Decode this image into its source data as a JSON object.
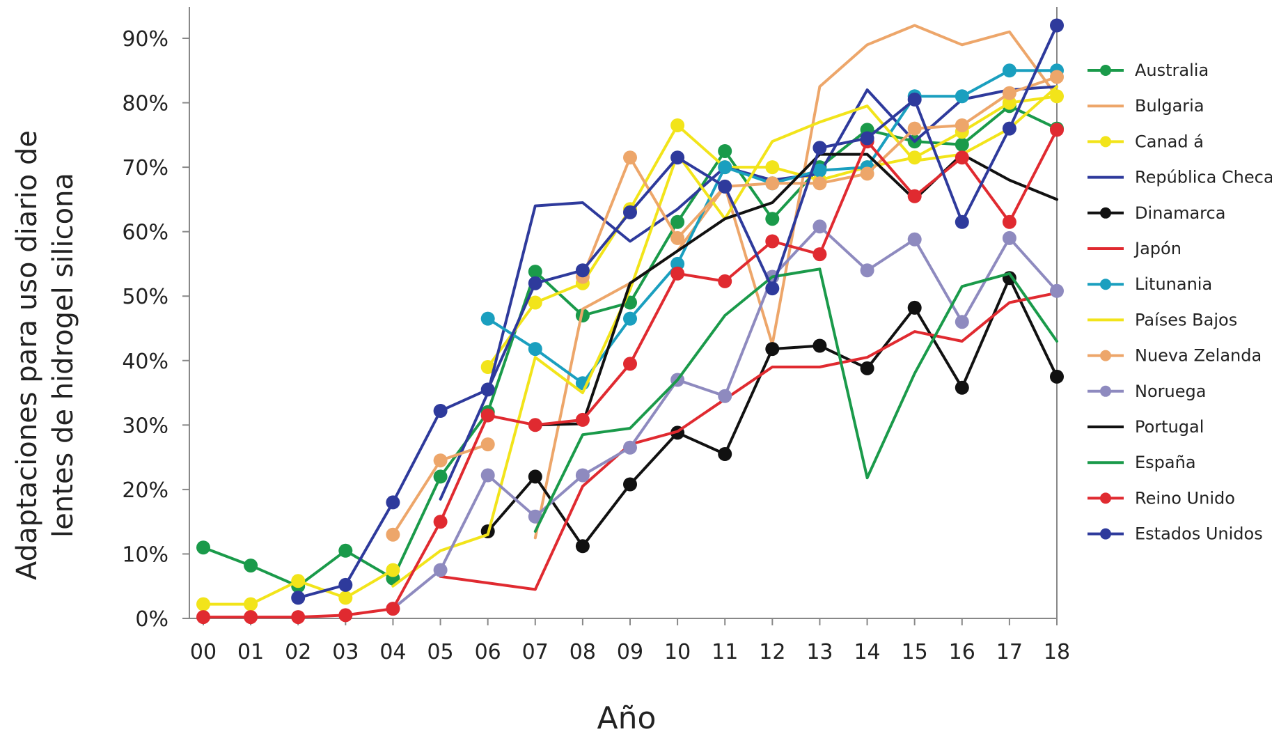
{
  "chart_data": {
    "type": "line",
    "xlabel": "Año",
    "ylabel_line1": "Adaptaciones para uso diario de",
    "ylabel_line2": "lentes de hidrogel silicona",
    "x": [
      "00",
      "01",
      "02",
      "03",
      "04",
      "05",
      "06",
      "07",
      "08",
      "09",
      "10",
      "11",
      "12",
      "13",
      "14",
      "15",
      "16",
      "17",
      "18"
    ],
    "yticks": [
      "0%",
      "10%",
      "20%",
      "30%",
      "40%",
      "50%",
      "60%",
      "70%",
      "80%",
      "90%"
    ],
    "ylim": [
      0,
      90
    ],
    "grid": false,
    "legend_position": "right",
    "series": [
      {
        "name": "Australia",
        "color": "#1a9a4a",
        "markers": true,
        "values": [
          11,
          8.2,
          5,
          10.5,
          6.2,
          22,
          32,
          53.8,
          47,
          49,
          61.5,
          72.5,
          62,
          70,
          75.8,
          74,
          73.5,
          79.5,
          76
        ]
      },
      {
        "name": "Bulgaria",
        "color": "#eda66a",
        "markers": false,
        "values": [
          null,
          null,
          null,
          null,
          null,
          null,
          null,
          12.5,
          48,
          52,
          57,
          67,
          42.5,
          82.5,
          89,
          92,
          89,
          91,
          81
        ]
      },
      {
        "name": "Canad á",
        "color": "#f2e41a",
        "markers": true,
        "values": [
          2.2,
          2.2,
          5.8,
          3.2,
          7.5,
          null,
          39,
          49,
          52,
          63.5,
          76.5,
          70,
          70,
          68,
          70,
          71.5,
          75.5,
          80,
          81
        ]
      },
      {
        "name": "República Checa",
        "color": "#2e3a9c",
        "markers": false,
        "values": [
          null,
          null,
          null,
          null,
          null,
          18.5,
          35,
          64,
          64.5,
          58.5,
          63.5,
          70,
          68,
          69,
          82,
          74,
          80.5,
          82,
          82.5
        ]
      },
      {
        "name": "Dinamarca",
        "color": "#111111",
        "markers": true,
        "values": [
          null,
          null,
          null,
          null,
          null,
          null,
          13.5,
          22,
          11.2,
          20.8,
          28.8,
          25.5,
          41.8,
          42.3,
          38.8,
          48.2,
          35.8,
          52.8,
          37.5
        ]
      },
      {
        "name": "Japón",
        "color": "#e02a30",
        "markers": false,
        "values": [
          null,
          null,
          null,
          null,
          null,
          6.5,
          5.5,
          4.5,
          20.5,
          27,
          29,
          34,
          39,
          39,
          40.5,
          44.5,
          43,
          49,
          50.5
        ]
      },
      {
        "name": "Litunania",
        "color": "#1a9fbf",
        "markers": true,
        "values": [
          null,
          null,
          null,
          null,
          null,
          null,
          46.5,
          41.8,
          36.5,
          46.5,
          55,
          70,
          67.5,
          69.5,
          70,
          81,
          81,
          85,
          85
        ]
      },
      {
        "name": "Países Bajos",
        "color": "#f2e41a",
        "markers": false,
        "values": [
          null,
          null,
          null,
          null,
          5,
          10.5,
          13,
          40.5,
          35,
          51,
          72,
          62,
          74,
          77,
          79.5,
          71,
          72,
          76,
          82.5
        ]
      },
      {
        "name": "Nueva Zelanda",
        "color": "#eda66a",
        "markers": true,
        "values": [
          null,
          null,
          null,
          null,
          13,
          24.5,
          27,
          null,
          53,
          71.5,
          59,
          67,
          67.5,
          67.5,
          69,
          76,
          76.5,
          81.5,
          84
        ]
      },
      {
        "name": "Noruega",
        "color": "#8e8abf",
        "markers": true,
        "values": [
          null,
          null,
          null,
          null,
          1.5,
          7.5,
          22.2,
          15.8,
          22.2,
          26.5,
          37,
          34.5,
          53,
          60.8,
          54,
          58.8,
          46,
          59,
          50.8
        ]
      },
      {
        "name": "Portugal",
        "color": "#111111",
        "markers": false,
        "values": [
          null,
          null,
          null,
          null,
          null,
          null,
          null,
          30,
          30.2,
          52,
          57,
          62,
          64.5,
          72,
          72,
          65,
          72,
          68,
          65
        ]
      },
      {
        "name": "España",
        "color": "#1a9a4a",
        "markers": false,
        "values": [
          null,
          null,
          null,
          null,
          null,
          null,
          null,
          13.5,
          28.5,
          29.5,
          37,
          47,
          53,
          54.2,
          21.8,
          38,
          51.5,
          53.5,
          43
        ]
      },
      {
        "name": "Reino Unido",
        "color": "#e02a30",
        "markers": true,
        "values": [
          0.2,
          0.2,
          0.2,
          0.5,
          1.5,
          15,
          31.5,
          30,
          30.8,
          39.5,
          53.5,
          52.3,
          58.5,
          56.5,
          74,
          65.5,
          71.5,
          61.5,
          75.8
        ]
      },
      {
        "name": "Estados Unidos",
        "color": "#2e3a9c",
        "markers": true,
        "values": [
          null,
          null,
          3.2,
          5.2,
          18,
          32.2,
          35.5,
          52,
          54,
          63,
          71.5,
          67,
          51.2,
          73,
          74.5,
          80.5,
          61.5,
          76,
          92
        ]
      }
    ]
  }
}
